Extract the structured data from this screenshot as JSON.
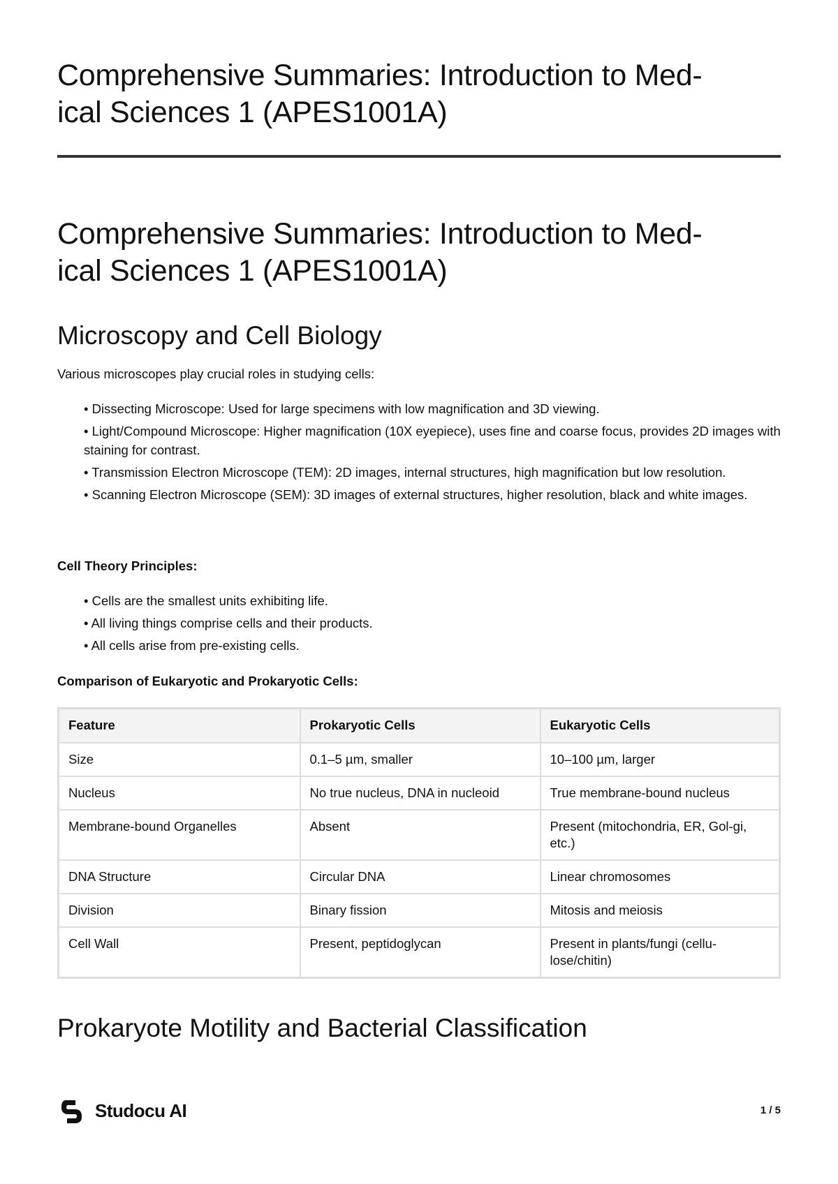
{
  "doc_title": "Comprehensive Summaries: Introduction to Medical Sciences 1 (APES1001A)",
  "doc_title_lines": [
    "Comprehensive Summaries: Introduction to Med-",
    "ical Sciences 1 (APES1001A)"
  ],
  "sections": [
    {
      "heading": "Microscopy and Cell Biology",
      "intro": "Various microscopes play crucial roles in studying cells:",
      "microscopes": [
        "• Dissecting Microscope: Used for large specimens with low magnification and 3D viewing.",
        "• Light/Compound Microscope: Higher magnification (10X eyepiece), uses fine and coarse focus, provides 2D images with staining for contrast.",
        "• Transmission Electron Microscope (TEM): 2D images, internal structures, high magnification but low resolution.",
        "• Scanning Electron Microscope (SEM): 3D images of external structures, higher resolution, black and white images."
      ],
      "cell_theory_heading": "Cell Theory Principles:",
      "cell_theory": [
        "• Cells are the smallest units exhibiting life.",
        "• All living things comprise cells and their products.",
        "• All cells arise from pre-existing cells."
      ],
      "comparison_heading": "Comparison of Eukaryotic and Prokaryotic Cells:",
      "table": {
        "headers": [
          "Feature",
          "Prokaryotic Cells",
          "Eukaryotic Cells"
        ],
        "rows": [
          [
            "Size",
            "0.1–5 µm, smaller",
            "10–100 µm, larger"
          ],
          [
            "Nucleus",
            "No true nucleus, DNA in nucleoid",
            "True membrane-bound nucleus"
          ],
          [
            "Membrane-bound Organelles",
            "Absent",
            "Present (mitochondria, ER, Gol-gi, etc.)"
          ],
          [
            "DNA Structure",
            "Circular DNA",
            "Linear chromosomes"
          ],
          [
            "Division",
            "Binary fission",
            "Mitosis and meiosis"
          ],
          [
            "Cell Wall",
            "Present, peptidoglycan",
            "Present in plants/fungi (cellu-lose/chitin)"
          ]
        ]
      }
    },
    {
      "heading": "Prokaryote Motility and Bacterial Classification"
    }
  ],
  "footer": {
    "brand": "Studocu AI",
    "page": "1 / 5",
    "logo_icon": "studocu-logo-icon"
  }
}
